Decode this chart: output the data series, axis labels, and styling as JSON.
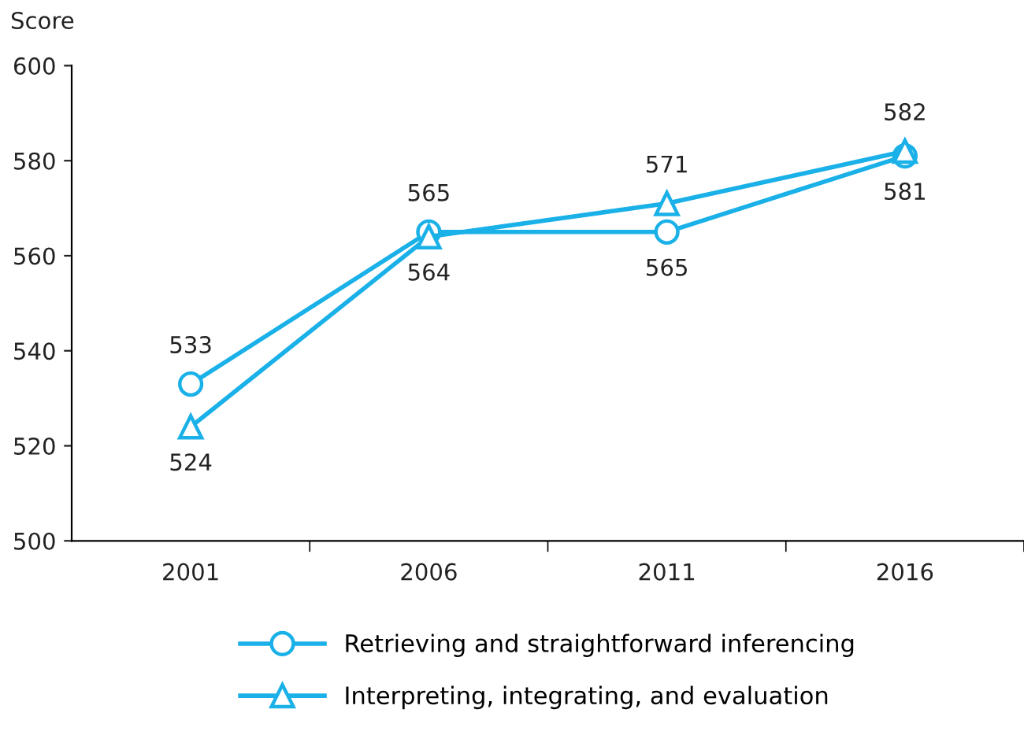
{
  "chart_data": {
    "type": "line",
    "ylabel": "Score",
    "categories": [
      "2001",
      "2006",
      "2011",
      "2016"
    ],
    "series": [
      {
        "name": "Retrieving and straightforward inferencing",
        "color": "#1ab0e8",
        "marker": "circle",
        "values": [
          533,
          565,
          565,
          581
        ]
      },
      {
        "name": "Interpreting, integrating, and evaluation",
        "color": "#1ab0e8",
        "marker": "triangle",
        "values": [
          524,
          564,
          571,
          582
        ]
      }
    ],
    "ylim": [
      500,
      600
    ],
    "yticks": [
      500,
      520,
      540,
      560,
      580,
      600
    ],
    "grid": false,
    "legend": "bottom",
    "data_labels": true,
    "line_style": "solid"
  }
}
